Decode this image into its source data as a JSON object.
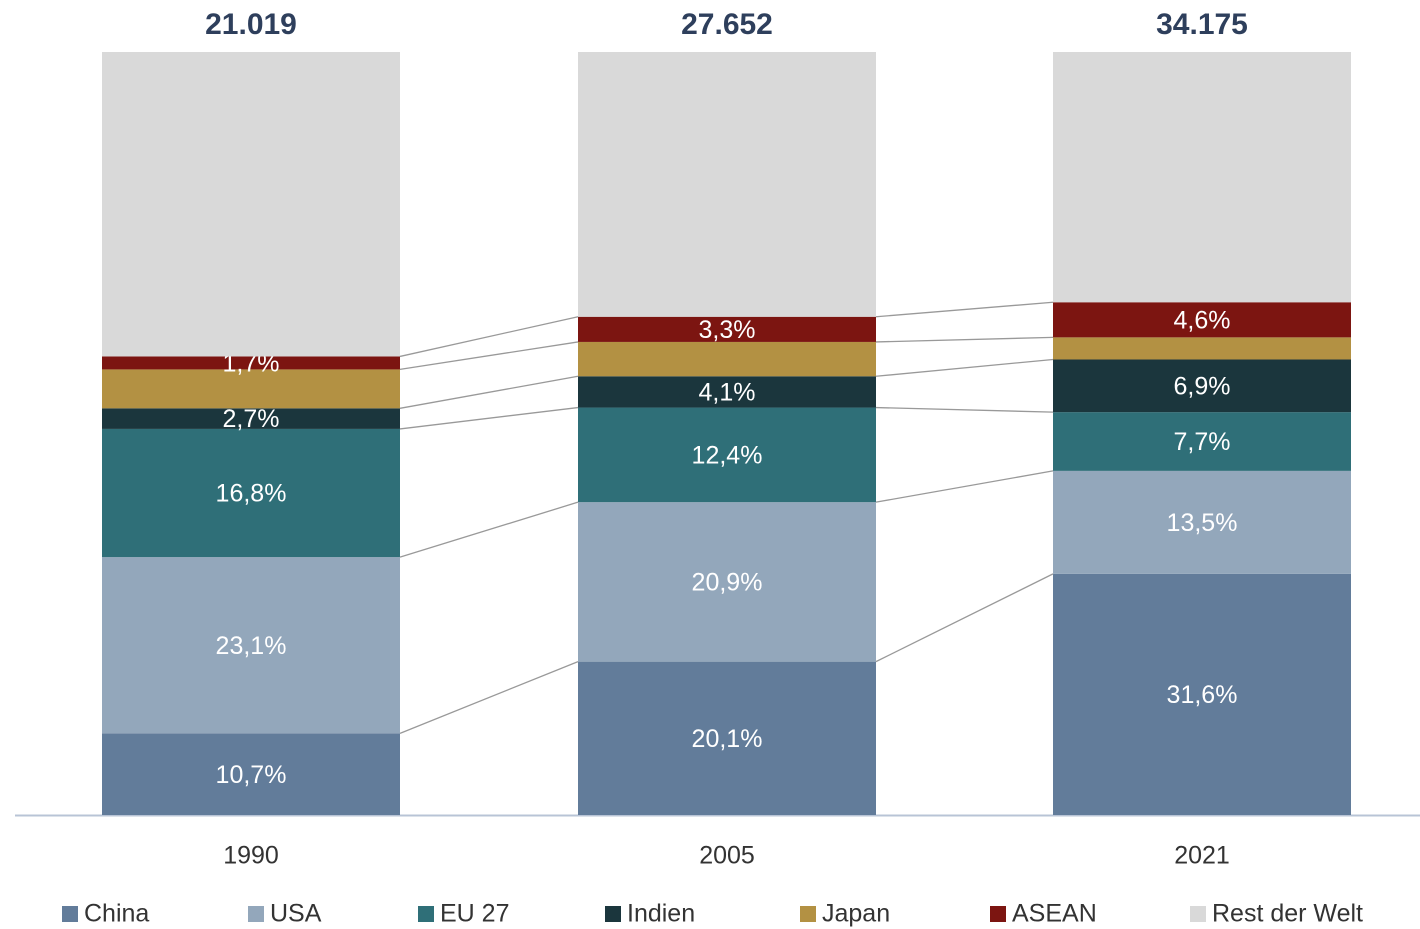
{
  "chart_data": {
    "type": "stacked_bar_100",
    "categories": [
      "1990",
      "2005",
      "2021"
    ],
    "totals": [
      "21.019",
      "27.652",
      "34.175"
    ],
    "ylim": [
      0,
      100
    ],
    "series": [
      {
        "name": "China",
        "color": "#627c9a",
        "values": [
          10.7,
          20.1,
          31.6
        ],
        "value_labels": [
          "10,7%",
          "20,1%",
          "31,6%"
        ]
      },
      {
        "name": "USA",
        "color": "#93a7bb",
        "values": [
          23.1,
          20.9,
          13.5
        ],
        "value_labels": [
          "23,1%",
          "20,9%",
          "13,5%"
        ]
      },
      {
        "name": "EU 27",
        "color": "#2f6f78",
        "values": [
          16.8,
          12.4,
          7.7
        ],
        "value_labels": [
          "16,8%",
          "12,4%",
          "7,7%"
        ]
      },
      {
        "name": "Indien",
        "color": "#1b363d",
        "values": [
          2.7,
          4.1,
          6.9
        ],
        "value_labels": [
          "2,7%",
          "4,1%",
          "6,9%"
        ]
      },
      {
        "name": "Japan",
        "color": "#b39143",
        "values": [
          5.1,
          4.5,
          2.9
        ],
        "value_labels": [
          null,
          null,
          null
        ]
      },
      {
        "name": "ASEAN",
        "color": "#7c1511",
        "values": [
          1.7,
          3.3,
          4.6
        ],
        "value_labels": [
          "1,7%",
          "3,3%",
          "4,6%"
        ]
      },
      {
        "name": "Rest der Welt",
        "color": "#d9d9d9",
        "values": [
          39.9,
          34.7,
          32.8
        ],
        "value_labels": [
          null,
          null,
          null
        ]
      }
    ]
  }
}
